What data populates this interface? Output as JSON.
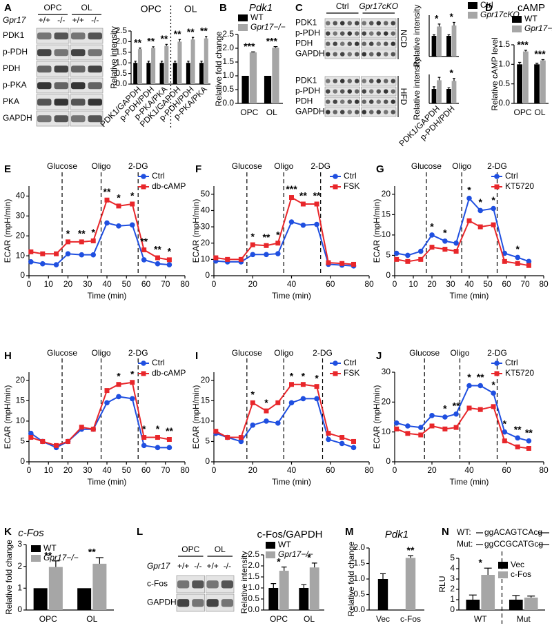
{
  "panel_labels": [
    "A",
    "B",
    "C",
    "D",
    "E",
    "F",
    "G",
    "H",
    "I",
    "J",
    "K",
    "L",
    "M",
    "N"
  ],
  "blots": [
    {
      "groups": [
        "OPC",
        "OL"
      ],
      "genotype_label": "Gpr17",
      "genotypes": [
        "+/+",
        "-/-",
        "+/+",
        "-/-"
      ],
      "sections": [
        {
          "bands": [
            "PDK1",
            "p-PDH",
            "PDH",
            "p-PKA",
            "PKA",
            "GAPDH"
          ]
        }
      ]
    },
    {
      "groups": [
        "Ctrl",
        "Gpr17cKO"
      ],
      "sections": [
        {
          "label": "NCD",
          "bands": [
            "PDK1",
            "p-PDH",
            "PDH",
            "GAPDH"
          ]
        },
        {
          "label": "HFD",
          "bands": [
            "PDK1",
            "p-PDH",
            "PDH",
            "GAPDH"
          ]
        }
      ]
    },
    {
      "groups": [
        "OPC",
        "OL"
      ],
      "genotype_label": "Gpr17",
      "genotypes": [
        "+/+",
        "-/-",
        "+/+",
        "-/-"
      ],
      "sections": [
        {
          "bands": [
            "c-Fos",
            "GAPDH"
          ]
        }
      ]
    }
  ],
  "sequences": [
    {
      "label": "WT:",
      "sequence": "ggACAGTCAcg"
    },
    {
      "label": "Mut:",
      "sequence": "ggCCGCATGcg"
    }
  ],
  "chart_data": [
    {
      "type": "bar",
      "ylabel": "Relative intensity",
      "categories": [
        "PDK1/GAPDH",
        "p-PDH/PDH",
        "p-PKA/PKA",
        "PDK1/GAPDH",
        "p-PDH/PDH",
        "p-PKA/PKA"
      ],
      "group_labels": [
        "OPC",
        "OL"
      ],
      "group_divider": "dotted",
      "rotated_labels": true,
      "series": [
        {
          "color": "#000000",
          "values": [
            1,
            1,
            1,
            1,
            1,
            1
          ],
          "errors": [
            0.08,
            0.08,
            0.08,
            0.08,
            0.08,
            0.08
          ]
        },
        {
          "color": "#a6a6a6",
          "values": [
            1.65,
            1.7,
            1.8,
            2.0,
            2.1,
            2.15
          ],
          "errors": [
            0.05,
            0.06,
            0.07,
            0.1,
            0.1,
            0.1
          ],
          "significance": [
            "**",
            "**",
            "**",
            "**",
            "**",
            "**"
          ]
        }
      ],
      "ylim": [
        0,
        2.5
      ],
      "yticks": [
        {
          "value": 0,
          "label": "0.0"
        },
        0.5,
        {
          "value": 1,
          "label": "1.0"
        },
        1.5,
        {
          "value": 2,
          "label": "2.0"
        },
        2.5
      ]
    },
    {
      "type": "bar",
      "title": "Pdk1",
      "ylabel": "Relative fold change",
      "categories": [
        "OPC",
        "OL"
      ],
      "series": [
        {
          "name": "WT",
          "color": "#000000",
          "values": [
            1,
            1
          ]
        },
        {
          "name": "Gpr17−/−",
          "color": "#a6a6a6",
          "values": [
            1.85,
            2.02
          ],
          "errors": [
            0.02,
            0.04
          ],
          "significance": [
            "***",
            "***"
          ]
        }
      ],
      "ylim": [
        0,
        2.5
      ],
      "yticks": [
        {
          "value": 0,
          "label": "0.0"
        },
        0.5,
        {
          "value": 1,
          "label": "1.0"
        },
        1.5,
        {
          "value": 2,
          "label": "2.0"
        },
        2.5
      ],
      "legend": "upper left"
    },
    {
      "type": "bar",
      "ylabel": "Relative intensity",
      "categories": [
        null,
        null
      ],
      "series": [
        {
          "name": "Ctrl",
          "color": "#000000",
          "values": [
            1.0,
            1.0
          ],
          "errors": [
            0.05,
            0.05
          ]
        },
        {
          "name": "Gpr17cKO",
          "color": "#a6a6a6",
          "values": [
            1.45,
            1.5
          ],
          "errors": [
            0.12,
            0.15
          ],
          "significance": [
            "*",
            "*"
          ]
        }
      ],
      "ylim": [
        0,
        2
      ],
      "legend": "upper right"
    },
    {
      "type": "bar",
      "ylabel": "Relative intensity",
      "categories": [
        "PDK1/GAPDH",
        "p-PDH/PDH"
      ],
      "rotated_labels": true,
      "series": [
        {
          "color": "#000000",
          "values": [
            1.0,
            1.0
          ],
          "errors": [
            0.15,
            0.08
          ]
        },
        {
          "color": "#a6a6a6",
          "values": [
            1.6,
            1.55
          ],
          "errors": [
            0.2,
            0.18
          ],
          "significance": [
            null,
            "*"
          ]
        }
      ],
      "ylim": [
        0,
        2
      ]
    },
    {
      "type": "bar",
      "title": "cAMP",
      "ylabel": "Relative cAMP level",
      "categories": [
        "OPC",
        "OL"
      ],
      "series": [
        {
          "name": "WT",
          "color": "#000000",
          "values": [
            1.0,
            1.0
          ],
          "errors": [
            0.05,
            0.03
          ]
        },
        {
          "name": "Gpr17−/−",
          "color": "#a6a6a6",
          "values": [
            1.33,
            1.1
          ],
          "errors": [
            0.03,
            0.02
          ],
          "significance": [
            "***",
            "***"
          ]
        }
      ],
      "ylim": [
        0,
        1.5
      ],
      "yticks": [
        {
          "value": 0,
          "label": "0.0"
        },
        0.5,
        {
          "value": 1,
          "label": "1.0"
        },
        1.5
      ],
      "legend": "upper left"
    },
    {
      "type": "line",
      "xlabel": "Time (min)",
      "ylabel": "ECAR (mpH/min)",
      "x": [
        1,
        7,
        14,
        20,
        27,
        33,
        40,
        46,
        53,
        59,
        66,
        72
      ],
      "series": [
        {
          "name": "Ctrl",
          "color": "#1f4fe0",
          "marker": "circle",
          "values": [
            7,
            6,
            5.5,
            11,
            10.5,
            10.5,
            26.5,
            25,
            25.5,
            8,
            6,
            5.5
          ]
        },
        {
          "name": "db-cAMP",
          "color": "#e8262a",
          "marker": "square",
          "values": [
            12,
            11,
            11,
            17,
            17,
            17.5,
            38,
            35,
            36,
            13,
            9,
            8
          ]
        }
      ],
      "significance": [
        null,
        null,
        null,
        "*",
        "**",
        "*",
        "**",
        "*",
        "*",
        "**",
        "**",
        "*"
      ],
      "phases": [
        {
          "label": "Glucose",
          "x": 17
        },
        {
          "label": "Oligo",
          "x": 37
        },
        {
          "label": "2-DG",
          "x": 56
        }
      ],
      "xlim": [
        0,
        80
      ],
      "xticks": [
        0,
        10,
        20,
        30,
        40,
        50,
        60,
        70,
        80
      ],
      "ylim": [
        0,
        45
      ],
      "yticks": [
        0,
        10,
        20,
        30,
        40
      ],
      "legend": "upper right"
    },
    {
      "type": "line",
      "xlabel": "Time (min)",
      "ylabel": "ECAR (mpH/min)",
      "x": [
        1,
        7,
        14,
        20,
        27,
        33,
        40,
        46,
        53,
        59,
        66,
        72
      ],
      "series": [
        {
          "name": "Ctrl",
          "color": "#1f4fe0",
          "marker": "circle",
          "values": [
            9,
            8.5,
            8.5,
            13,
            13,
            13.5,
            33,
            31,
            31.5,
            7,
            6.5,
            6
          ]
        },
        {
          "name": "FSK",
          "color": "#e8262a",
          "marker": "square",
          "values": [
            11,
            10,
            10,
            19,
            18.5,
            20,
            48,
            44,
            44,
            8,
            7.5,
            7
          ]
        }
      ],
      "significance": [
        null,
        null,
        null,
        "*",
        "**",
        "*",
        "***",
        "**",
        "**",
        null,
        null,
        null
      ],
      "phases": [
        {
          "label": "Glucose",
          "x": 17
        },
        {
          "label": "Oligo",
          "x": 36
        },
        {
          "label": "2-DG",
          "x": 55
        }
      ],
      "xlim": [
        0,
        80
      ],
      "xticks": [
        0,
        20,
        40,
        60,
        80
      ],
      "ylim": [
        0,
        55
      ],
      "yticks": [
        0,
        10,
        20,
        30,
        40,
        50
      ],
      "legend": "upper right"
    },
    {
      "type": "line",
      "xlabel": "Time (min)",
      "ylabel": "ECAR (mpH/min)",
      "x": [
        1,
        7,
        14,
        20,
        27,
        33,
        40,
        46,
        53,
        59,
        66,
        72
      ],
      "series": [
        {
          "name": "Ctrl",
          "color": "#1f4fe0",
          "marker": "circle",
          "values": [
            5.5,
            5,
            6,
            10,
            8.5,
            8,
            19,
            16,
            16.5,
            5.5,
            4.5,
            3.5
          ]
        },
        {
          "name": "KT5720",
          "color": "#e8262a",
          "marker": "square",
          "values": [
            4,
            3.5,
            4,
            7,
            6.5,
            6,
            13.5,
            12,
            12.5,
            3.5,
            3,
            2.5
          ]
        }
      ],
      "significance": [
        null,
        null,
        null,
        "*",
        "*",
        null,
        "*",
        "*",
        "*",
        null,
        "*",
        null
      ],
      "phases": [
        {
          "label": "Glucose",
          "x": 17
        },
        {
          "label": "Oligo",
          "x": 36
        },
        {
          "label": "2-DG",
          "x": 55
        }
      ],
      "xlim": [
        0,
        80
      ],
      "xticks": [
        0,
        10,
        20,
        30,
        40,
        50,
        60,
        70,
        80
      ],
      "ylim": [
        0,
        22
      ],
      "yticks": [
        0,
        5,
        10,
        15,
        20
      ],
      "legend": "upper right"
    },
    {
      "type": "line",
      "xlabel": "Time (min)",
      "ylabel": "ECAR (mpH/min)",
      "x": [
        1,
        7,
        14,
        20,
        27,
        33,
        40,
        46,
        53,
        59,
        66,
        72
      ],
      "series": [
        {
          "name": "Ctrl",
          "color": "#1f4fe0",
          "marker": "circle",
          "values": [
            7,
            5,
            3.5,
            5,
            8,
            8,
            14.5,
            16,
            15.5,
            4,
            3.5,
            3.5
          ]
        },
        {
          "name": "db-cAMP",
          "color": "#e8262a",
          "marker": "square",
          "values": [
            6,
            5,
            4,
            5,
            8.5,
            8,
            17.5,
            19,
            19.5,
            6,
            6,
            5.5
          ]
        }
      ],
      "significance": [
        null,
        null,
        null,
        null,
        null,
        null,
        null,
        "*",
        "*",
        "*",
        "*",
        "**"
      ],
      "phases": [
        {
          "label": "Glucose",
          "x": 17
        },
        {
          "label": "Oligo",
          "x": 37
        },
        {
          "label": "2-DG",
          "x": 56
        }
      ],
      "xlim": [
        0,
        80
      ],
      "xticks": [
        0,
        10,
        20,
        30,
        40,
        50,
        60,
        70,
        80
      ],
      "ylim": [
        0,
        22
      ],
      "yticks": [
        0,
        5,
        10,
        15,
        20
      ],
      "legend": "upper right"
    },
    {
      "type": "line",
      "xlabel": "Time (min)",
      "ylabel": "ECAR (mpH/min)",
      "x": [
        1,
        7,
        14,
        20,
        27,
        33,
        40,
        46,
        53,
        59,
        66,
        72
      ],
      "series": [
        {
          "name": "Ctrl",
          "color": "#1f4fe0",
          "marker": "circle",
          "values": [
            7,
            6,
            5,
            9,
            10,
            9.5,
            14.5,
            15.5,
            15.5,
            5.5,
            4.5,
            3.5
          ]
        },
        {
          "name": "FSK",
          "color": "#e8262a",
          "marker": "square",
          "values": [
            7.5,
            6,
            6,
            14.5,
            12.5,
            14.5,
            19,
            19,
            18.5,
            7,
            6,
            5
          ]
        }
      ],
      "significance": [
        null,
        null,
        null,
        "*",
        "*",
        null,
        "*",
        "*",
        "*",
        null,
        null,
        null
      ],
      "phases": [
        {
          "label": "Glucose",
          "x": 17
        },
        {
          "label": "Oligo",
          "x": 36
        },
        {
          "label": "2-DG",
          "x": 56
        }
      ],
      "xlim": [
        0,
        80
      ],
      "xticks": [
        0,
        20,
        40,
        60,
        80
      ],
      "ylim": [
        0,
        22
      ],
      "yticks": [
        0,
        5,
        10,
        15,
        20
      ],
      "legend": "upper right"
    },
    {
      "type": "line",
      "xlabel": "Time (min)",
      "ylabel": "ECAR (mpH/min)",
      "x": [
        1,
        7,
        14,
        20,
        27,
        33,
        40,
        46,
        53,
        59,
        66,
        72
      ],
      "series": [
        {
          "name": "Ctrl",
          "color": "#1f4fe0",
          "marker": "circle",
          "values": [
            13,
            12,
            11.5,
            15.5,
            15,
            16,
            25.5,
            25.5,
            23,
            10,
            8,
            7
          ]
        },
        {
          "name": "KT5720",
          "color": "#e8262a",
          "marker": "square",
          "values": [
            11,
            9.5,
            9,
            12,
            11,
            11.5,
            18,
            17.5,
            18.5,
            7,
            5,
            4.5
          ]
        }
      ],
      "significance": [
        null,
        null,
        null,
        null,
        "*",
        "**",
        "*",
        "**",
        "*",
        "*",
        "**",
        "**"
      ],
      "phases": [
        {
          "label": "Glucose",
          "x": 16
        },
        {
          "label": "Oligo",
          "x": 35
        },
        {
          "label": "2-DG",
          "x": 55
        }
      ],
      "xlim": [
        0,
        80
      ],
      "xticks": [
        0,
        20,
        40,
        60,
        80
      ],
      "ylim": [
        0,
        30
      ],
      "yticks": [
        0,
        10,
        20,
        30
      ],
      "legend": "upper right"
    },
    {
      "type": "bar",
      "title": "c-Fos",
      "ylabel": "Relative fold change",
      "categories": [
        "OPC",
        "OL"
      ],
      "series": [
        {
          "name": "WT",
          "color": "#000000",
          "values": [
            1,
            1
          ]
        },
        {
          "name": "Gpr17−/−",
          "color": "#a6a6a6",
          "values": [
            1.97,
            2.12
          ],
          "errors": [
            0.28,
            0.28
          ],
          "significance": [
            "**",
            "**"
          ]
        }
      ],
      "ylim": [
        0,
        3
      ],
      "yticks": [
        0,
        1,
        2,
        3
      ],
      "legend": "upper left"
    },
    {
      "type": "bar",
      "title": "c-Fos/GAPDH",
      "ylabel": "Relative intensity",
      "categories": [
        "OPC",
        "OL"
      ],
      "series": [
        {
          "name": "WT",
          "color": "#000000",
          "values": [
            1,
            1
          ],
          "errors": [
            0.2,
            0.15
          ]
        },
        {
          "name": "Gpr17−/−",
          "color": "#a6a6a6",
          "values": [
            1.78,
            1.93
          ],
          "errors": [
            0.17,
            0.2
          ],
          "significance": [
            "*",
            "*"
          ]
        }
      ],
      "ylim": [
        0,
        2.5
      ],
      "yticks": [
        {
          "value": 0,
          "label": "0.0"
        },
        0.5,
        {
          "value": 1,
          "label": "1.0"
        },
        1.5,
        {
          "value": 2,
          "label": "2.0"
        },
        2.5
      ],
      "legend": "upper left"
    },
    {
      "type": "bar",
      "title": "Pdk1",
      "ylabel": "Relative fold change",
      "categories": [
        "Vec",
        "c-Fos"
      ],
      "series": [
        {
          "colors": [
            "#000000",
            "#a6a6a6"
          ],
          "values": [
            1.0,
            1.68
          ],
          "errors": [
            0.17,
            0.07
          ],
          "significance": [
            null,
            "**"
          ]
        }
      ],
      "ylim": [
        0,
        2
      ],
      "yticks": [
        {
          "value": 0,
          "label": "0.0"
        },
        0.5,
        {
          "value": 1,
          "label": "1.0"
        },
        1.5,
        {
          "value": 2,
          "label": "2.0"
        }
      ]
    },
    {
      "type": "bar",
      "ylabel": "RLU",
      "categories": [
        "WT",
        "Mut"
      ],
      "group_divider": "dashed",
      "series": [
        {
          "name": "Vec",
          "color": "#000000",
          "values": [
            1.0,
            1.0
          ],
          "errors": [
            0.45,
            0.4
          ]
        },
        {
          "name": "c-Fos",
          "color": "#a6a6a6",
          "values": [
            3.4,
            1.2
          ],
          "errors": [
            0.65,
            0.15
          ],
          "significance": [
            "*",
            null
          ]
        }
      ],
      "ylim": [
        0,
        5
      ],
      "yticks": [
        0,
        1,
        2,
        3,
        4,
        5
      ],
      "legend": "upper right"
    }
  ]
}
